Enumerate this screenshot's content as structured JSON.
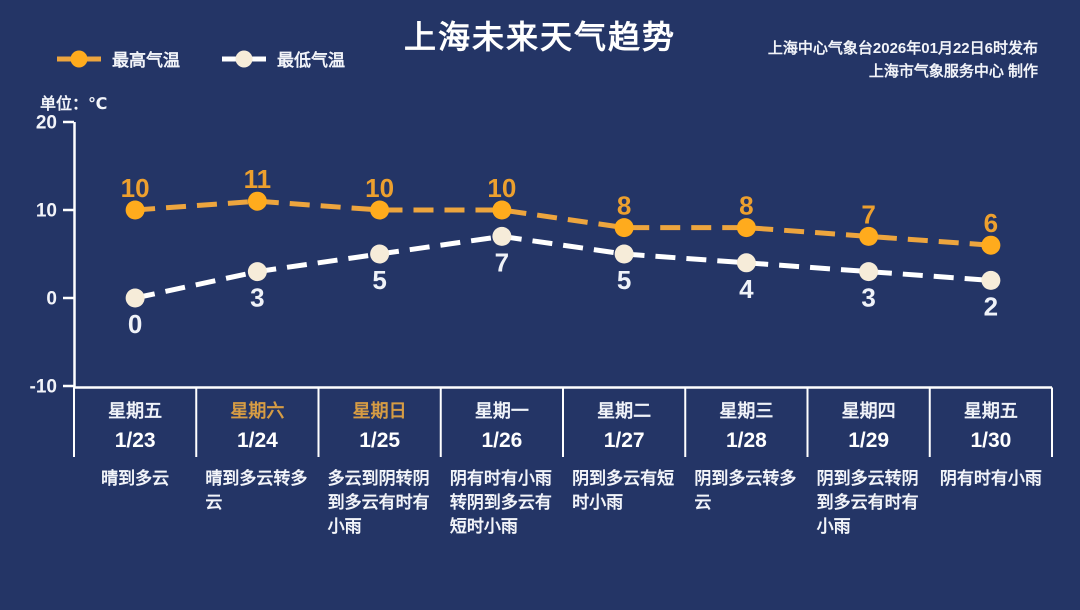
{
  "header": {
    "title": "上海未来天气趋势",
    "source_line1": "上海中心气象台2026年01月22日6时发布",
    "source_line2": "上海市气象服务中心  制作"
  },
  "axis": {
    "unit_label": "单位：℃"
  },
  "legend": {
    "items": [
      {
        "label": "最高气温",
        "marker_color": "#ffab1d",
        "line_color": "#eda53e"
      },
      {
        "label": "最低气温",
        "marker_color": "#f6ecd9",
        "line_color": "#ffffff"
      }
    ]
  },
  "colors": {
    "background": "#243566",
    "axis_line": "#ffffff",
    "tick_text": "#f2f4f9",
    "weekend_day": "#d69c44",
    "weekday_day": "#eff2f8"
  },
  "chart_data": {
    "type": "line",
    "title": "上海未来天气趋势",
    "ylabel": "℃",
    "ylim": [
      -10,
      20
    ],
    "yticks": [
      20,
      10,
      0,
      -10
    ],
    "grid": false,
    "legend_position": "top-left",
    "categories": [
      "1/23",
      "1/24",
      "1/25",
      "1/26",
      "1/27",
      "1/28",
      "1/29",
      "1/30"
    ],
    "series": [
      {
        "name": "最高气温",
        "values": [
          10,
          11,
          10,
          10,
          8,
          8,
          7,
          6
        ],
        "line_color": "#eda53e",
        "marker_color": "#ffab1d",
        "label_color": "#eda02e",
        "label_position": "above"
      },
      {
        "name": "最低气温",
        "values": [
          0,
          3,
          5,
          7,
          5,
          4,
          3,
          2
        ],
        "line_color": "#ffffff",
        "marker_color": "#f6ecd9",
        "label_color": "#eff2f8",
        "label_position": "below"
      }
    ],
    "columns": [
      {
        "day": "星期五",
        "date": "1/23",
        "weather": "晴到多云",
        "weekend": false
      },
      {
        "day": "星期六",
        "date": "1/24",
        "weather": "晴到多云转多云",
        "weekend": true
      },
      {
        "day": "星期日",
        "date": "1/25",
        "weather": "多云到阴转阴到多云有时有小雨",
        "weekend": true
      },
      {
        "day": "星期一",
        "date": "1/26",
        "weather": "阴有时有小雨转阴到多云有短时小雨",
        "weekend": false
      },
      {
        "day": "星期二",
        "date": "1/27",
        "weather": "阴到多云有短时小雨",
        "weekend": false
      },
      {
        "day": "星期三",
        "date": "1/28",
        "weather": "阴到多云转多云",
        "weekend": false
      },
      {
        "day": "星期四",
        "date": "1/29",
        "weather": "阴到多云转阴到多云有时有小雨",
        "weekend": false
      },
      {
        "day": "星期五",
        "date": "1/30",
        "weather": "阴有时有小雨",
        "weekend": false
      }
    ]
  }
}
